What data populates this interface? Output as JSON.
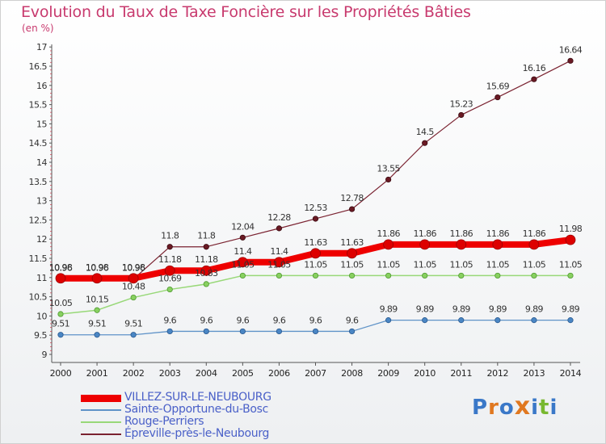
{
  "title": "Evolution du Taux de Taxe Foncière sur les Propriétés Bâties",
  "unit_label": "(en %)",
  "brand": {
    "text": "Proxiti",
    "letters": [
      "P",
      "r",
      "o",
      "x",
      "i",
      "t",
      "i"
    ],
    "colors": [
      "#3a78c8",
      "#e07820",
      "#3a78c8",
      "#e07820",
      "#3a78c8",
      "#78b830",
      "#3a78c8"
    ]
  },
  "chart_data": {
    "type": "line",
    "title": "Evolution du Taux de Taxe Foncière sur les Propriétés Bâties",
    "ylabel": "(en %)",
    "xlabel": "",
    "x": [
      "2000",
      "2001",
      "2002",
      "2003",
      "2004",
      "2005",
      "2006",
      "2007",
      "2008",
      "2009",
      "2010",
      "2011",
      "2012",
      "2013",
      "2014"
    ],
    "ylim": [
      9,
      17
    ],
    "yticks": [
      "9",
      "9.5",
      "10",
      "10.5",
      "11",
      "11.5",
      "12",
      "12.5",
      "13",
      "13.5",
      "14",
      "14.5",
      "15",
      "15.5",
      "16",
      "16.5",
      "17"
    ],
    "grid": false,
    "legend_position": "bottom-left",
    "series": [
      {
        "name": "VILLEZ-SUR-LE-NEUBOURG",
        "color": "#ee0000",
        "values": [
          10.98,
          10.98,
          10.98,
          11.18,
          11.18,
          11.4,
          11.4,
          11.63,
          11.63,
          11.86,
          11.86,
          11.86,
          11.86,
          11.86,
          11.98
        ],
        "labels": [
          "10.98",
          "10.98",
          "10.98",
          "11.18",
          "11.18",
          "11.4",
          "11.4",
          "11.63",
          "11.63",
          "11.86",
          "11.86",
          "11.86",
          "11.86",
          "11.86",
          "11.98"
        ]
      },
      {
        "name": "Sainte-Opportune-du-Bosc",
        "color": "#5f93c8",
        "values": [
          9.51,
          9.51,
          9.51,
          9.6,
          9.6,
          9.6,
          9.6,
          9.6,
          9.6,
          9.89,
          9.89,
          9.89,
          9.89,
          9.89,
          9.89
        ],
        "labels": [
          "9.51",
          "9.51",
          "9.51",
          "9.6",
          "9.6",
          "9.6",
          "9.6",
          "9.6",
          "9.6",
          "9.89",
          "9.89",
          "9.89",
          "9.89",
          "9.89",
          "9.89"
        ]
      },
      {
        "name": "Rouge-Perriers",
        "color": "#98d878",
        "values": [
          10.05,
          10.15,
          10.48,
          10.69,
          10.83,
          11.05,
          11.05,
          11.05,
          11.05,
          11.05,
          11.05,
          11.05,
          11.05,
          11.05,
          11.05
        ],
        "labels": [
          "10.05",
          "10.15",
          "10.48",
          "10.69",
          "10.83",
          "11.05",
          "11.05",
          "11.05",
          "11.05",
          "11.05",
          "11.05",
          "11.05",
          "11.05",
          "11.05",
          "11.05"
        ]
      },
      {
        "name": "Épreville-près-le-Neubourg",
        "color": "#7a2230",
        "values": [
          10.96,
          10.96,
          10.96,
          11.8,
          11.8,
          12.04,
          12.28,
          12.53,
          12.78,
          13.55,
          14.5,
          15.23,
          15.69,
          16.16,
          16.64
        ],
        "labels": [
          "10.96",
          "10.96",
          "10.96",
          "11.8",
          "11.8",
          "12.04",
          "12.28",
          "12.53",
          "12.78",
          "13.55",
          "14.5",
          "15.23",
          "15.69",
          "16.16",
          "16.64"
        ]
      }
    ]
  }
}
